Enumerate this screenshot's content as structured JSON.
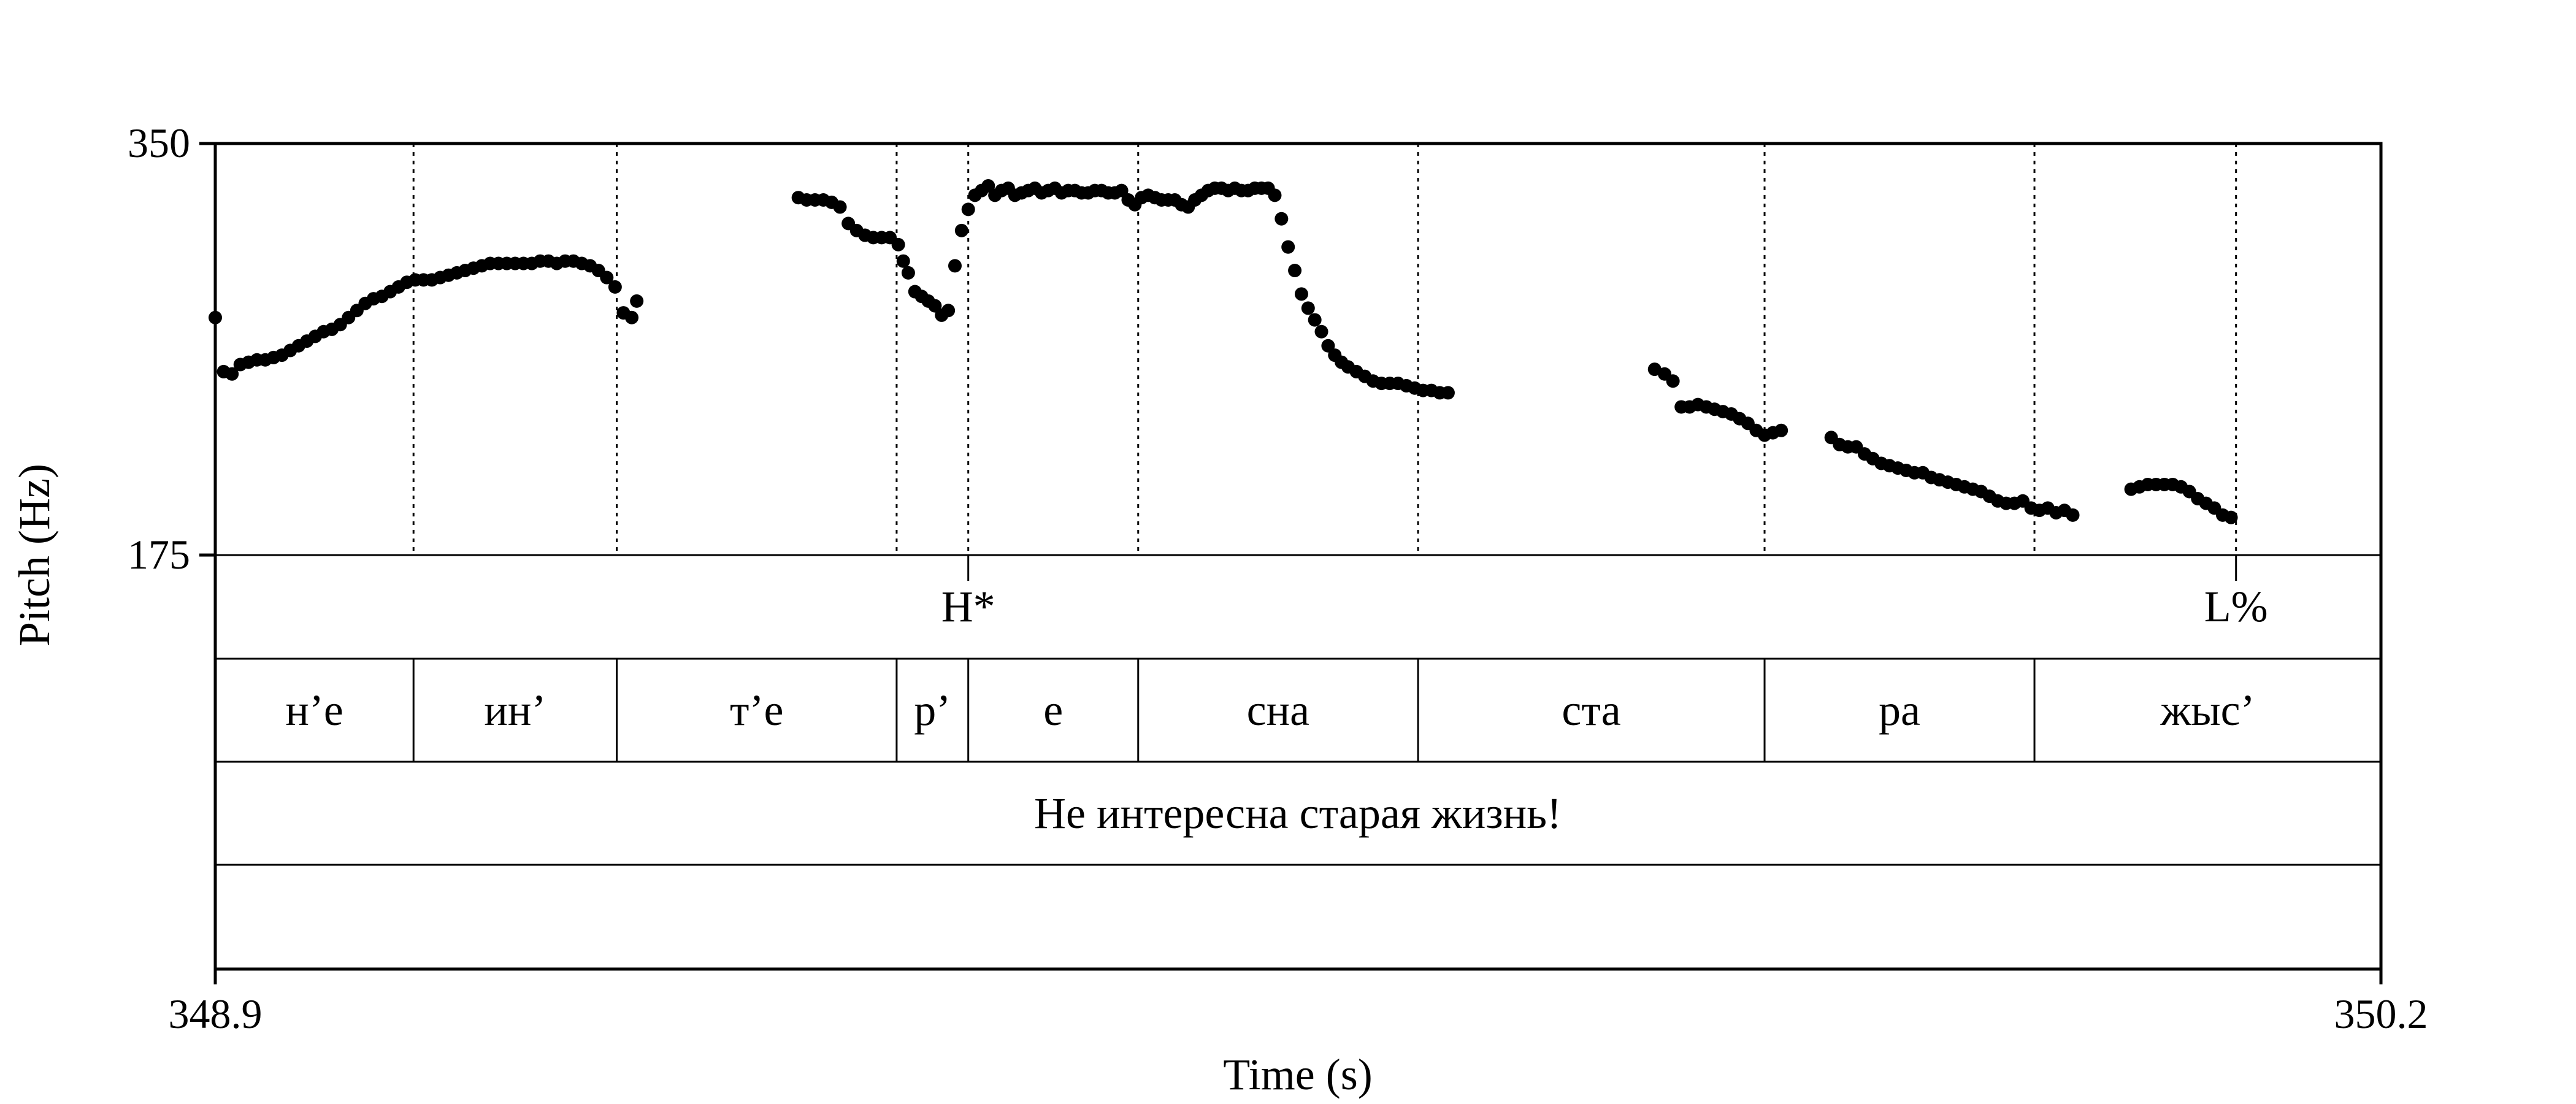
{
  "chart_data": {
    "type": "scatter",
    "xlabel": "Time (s)",
    "ylabel": "Pitch (Hz)",
    "xlim": [
      348.9,
      350.2
    ],
    "ylim": [
      175,
      350
    ],
    "x_tick_labels": [
      "348.9",
      "350.2"
    ],
    "y_tick_labels": [
      "350",
      "175"
    ],
    "tones": [
      {
        "label": "H*",
        "time": 349.352
      },
      {
        "label": "L%",
        "time": 350.113
      }
    ],
    "tone_mark_times": [
      349.019,
      349.141,
      349.309,
      349.352,
      349.454,
      349.622,
      349.83,
      349.992,
      350.113
    ],
    "syllables": [
      {
        "label": "н’е",
        "start": 348.9,
        "end": 349.019
      },
      {
        "label": "ин’",
        "start": 349.019,
        "end": 349.141
      },
      {
        "label": "т’е",
        "start": 349.141,
        "end": 349.309
      },
      {
        "label": "р’",
        "start": 349.309,
        "end": 349.352
      },
      {
        "label": "е",
        "start": 349.352,
        "end": 349.454
      },
      {
        "label": "сна",
        "start": 349.454,
        "end": 349.622
      },
      {
        "label": "ста",
        "start": 349.622,
        "end": 349.83
      },
      {
        "label": "ра",
        "start": 349.83,
        "end": 349.992
      },
      {
        "label": "жыс’",
        "start": 349.992,
        "end": 350.2
      }
    ],
    "sentence": "Не интересна старая жизнь!",
    "series": [
      {
        "segments": [
          [
            [
              348.9,
              276
            ],
            [
              348.905,
              253
            ],
            [
              348.91,
              252
            ],
            [
              348.915,
              256
            ],
            [
              348.92,
              257
            ],
            [
              348.925,
              258
            ],
            [
              348.93,
              258
            ],
            [
              348.935,
              259
            ],
            [
              348.94,
              260
            ],
            [
              348.945,
              262
            ],
            [
              348.95,
              264
            ],
            [
              348.955,
              266
            ],
            [
              348.96,
              268
            ],
            [
              348.965,
              270
            ],
            [
              348.97,
              271
            ],
            [
              348.975,
              273
            ],
            [
              348.98,
              276
            ],
            [
              348.985,
              279
            ],
            [
              348.99,
              282
            ],
            [
              348.995,
              284
            ],
            [
              349.0,
              285
            ],
            [
              349.005,
              287
            ],
            [
              349.01,
              289
            ],
            [
              349.015,
              291
            ],
            [
              349.02,
              292
            ],
            [
              349.025,
              292
            ],
            [
              349.03,
              292
            ],
            [
              349.035,
              293
            ],
            [
              349.04,
              294
            ],
            [
              349.045,
              295
            ],
            [
              349.05,
              296
            ],
            [
              349.055,
              297
            ],
            [
              349.06,
              298
            ],
            [
              349.065,
              299
            ],
            [
              349.07,
              299
            ],
            [
              349.075,
              299
            ],
            [
              349.08,
              299
            ],
            [
              349.085,
              299
            ],
            [
              349.09,
              299
            ],
            [
              349.095,
              300
            ],
            [
              349.1,
              300
            ],
            [
              349.105,
              299
            ],
            [
              349.11,
              300
            ],
            [
              349.115,
              300
            ],
            [
              349.12,
              299
            ],
            [
              349.125,
              298
            ],
            [
              349.13,
              296
            ],
            [
              349.135,
              293
            ],
            [
              349.14,
              289
            ],
            [
              349.145,
              278
            ],
            [
              349.15,
              276
            ],
            [
              349.153,
              283
            ]
          ],
          [
            [
              349.25,
              327
            ],
            [
              349.255,
              326
            ],
            [
              349.26,
              326
            ],
            [
              349.265,
              326
            ],
            [
              349.27,
              325
            ],
            [
              349.275,
              323
            ],
            [
              349.28,
              316
            ],
            [
              349.285,
              313
            ],
            [
              349.29,
              311
            ],
            [
              349.295,
              310
            ],
            [
              349.3,
              310
            ],
            [
              349.305,
              310
            ],
            [
              349.31,
              307
            ],
            [
              349.313,
              300
            ],
            [
              349.316,
              295
            ],
            [
              349.32,
              287
            ],
            [
              349.324,
              285
            ],
            [
              349.328,
              283
            ],
            [
              349.332,
              281
            ],
            [
              349.336,
              277
            ],
            [
              349.34,
              279
            ],
            [
              349.344,
              298
            ],
            [
              349.348,
              313
            ],
            [
              349.352,
              322
            ],
            [
              349.356,
              328
            ],
            [
              349.36,
              330
            ],
            [
              349.364,
              332
            ],
            [
              349.368,
              328
            ],
            [
              349.372,
              330
            ],
            [
              349.376,
              331
            ],
            [
              349.38,
              328
            ],
            [
              349.384,
              329
            ],
            [
              349.388,
              330
            ],
            [
              349.392,
              331
            ],
            [
              349.396,
              329
            ],
            [
              349.4,
              330
            ],
            [
              349.404,
              331
            ],
            [
              349.408,
              329
            ],
            [
              349.412,
              330
            ],
            [
              349.416,
              330
            ],
            [
              349.42,
              329
            ],
            [
              349.424,
              329
            ],
            [
              349.428,
              330
            ],
            [
              349.432,
              330
            ],
            [
              349.436,
              329
            ],
            [
              349.44,
              329
            ],
            [
              349.444,
              330
            ],
            [
              349.448,
              326
            ],
            [
              349.452,
              324
            ],
            [
              349.456,
              327
            ],
            [
              349.46,
              328
            ],
            [
              349.464,
              327
            ],
            [
              349.468,
              326
            ],
            [
              349.472,
              326
            ],
            [
              349.476,
              326
            ],
            [
              349.48,
              324
            ],
            [
              349.484,
              323
            ],
            [
              349.488,
              326
            ],
            [
              349.492,
              328
            ],
            [
              349.496,
              330
            ],
            [
              349.5,
              331
            ],
            [
              349.504,
              331
            ],
            [
              349.508,
              330
            ],
            [
              349.512,
              331
            ],
            [
              349.516,
              330
            ],
            [
              349.52,
              330
            ],
            [
              349.524,
              331
            ],
            [
              349.528,
              331
            ],
            [
              349.532,
              331
            ],
            [
              349.536,
              328
            ],
            [
              349.54,
              318
            ],
            [
              349.544,
              306
            ],
            [
              349.548,
              296
            ],
            [
              349.552,
              286
            ],
            [
              349.556,
              280
            ],
            [
              349.56,
              275
            ],
            [
              349.564,
              270
            ],
            [
              349.568,
              264
            ],
            [
              349.572,
              260
            ],
            [
              349.576,
              257
            ],
            [
              349.58,
              255
            ],
            [
              349.585,
              253
            ],
            [
              349.59,
              251
            ],
            [
              349.595,
              249
            ],
            [
              349.6,
              248
            ],
            [
              349.605,
              248
            ],
            [
              349.61,
              248
            ],
            [
              349.615,
              247
            ],
            [
              349.62,
              246
            ],
            [
              349.625,
              245
            ],
            [
              349.63,
              245
            ],
            [
              349.635,
              244
            ],
            [
              349.64,
              244
            ]
          ],
          [
            [
              349.764,
              254
            ],
            [
              349.77,
              252
            ],
            [
              349.775,
              249
            ],
            [
              349.78,
              238
            ],
            [
              349.785,
              238
            ],
            [
              349.79,
              239
            ],
            [
              349.795,
              238
            ],
            [
              349.8,
              237
            ],
            [
              349.805,
              236
            ],
            [
              349.81,
              235
            ],
            [
              349.815,
              233
            ],
            [
              349.82,
              231
            ],
            [
              349.825,
              228
            ],
            [
              349.83,
              226
            ],
            [
              349.835,
              227
            ],
            [
              349.84,
              228
            ]
          ],
          [
            [
              349.87,
              225
            ],
            [
              349.875,
              222
            ],
            [
              349.88,
              221
            ],
            [
              349.885,
              221
            ],
            [
              349.89,
              218
            ],
            [
              349.895,
              216
            ],
            [
              349.9,
              214
            ],
            [
              349.905,
              213
            ],
            [
              349.91,
              212
            ],
            [
              349.915,
              211
            ],
            [
              349.92,
              210
            ],
            [
              349.925,
              210
            ],
            [
              349.93,
              208
            ],
            [
              349.935,
              207
            ],
            [
              349.94,
              206
            ],
            [
              349.945,
              205
            ],
            [
              349.95,
              204
            ],
            [
              349.955,
              203
            ],
            [
              349.96,
              202
            ],
            [
              349.965,
              200
            ],
            [
              349.97,
              198
            ],
            [
              349.975,
              197
            ],
            [
              349.98,
              197
            ],
            [
              349.985,
              198
            ],
            [
              349.99,
              195
            ],
            [
              349.995,
              194
            ],
            [
              350.0,
              195
            ],
            [
              350.005,
              193
            ],
            [
              350.01,
              194
            ],
            [
              350.015,
              192
            ]
          ],
          [
            [
              350.05,
              203
            ],
            [
              350.055,
              204
            ],
            [
              350.06,
              205
            ],
            [
              350.065,
              205
            ],
            [
              350.07,
              205
            ],
            [
              350.075,
              205
            ],
            [
              350.08,
              204
            ],
            [
              350.085,
              202
            ],
            [
              350.09,
              199
            ],
            [
              350.095,
              197
            ],
            [
              350.1,
              195
            ],
            [
              350.105,
              192
            ],
            [
              350.11,
              191
            ]
          ]
        ]
      }
    ]
  }
}
